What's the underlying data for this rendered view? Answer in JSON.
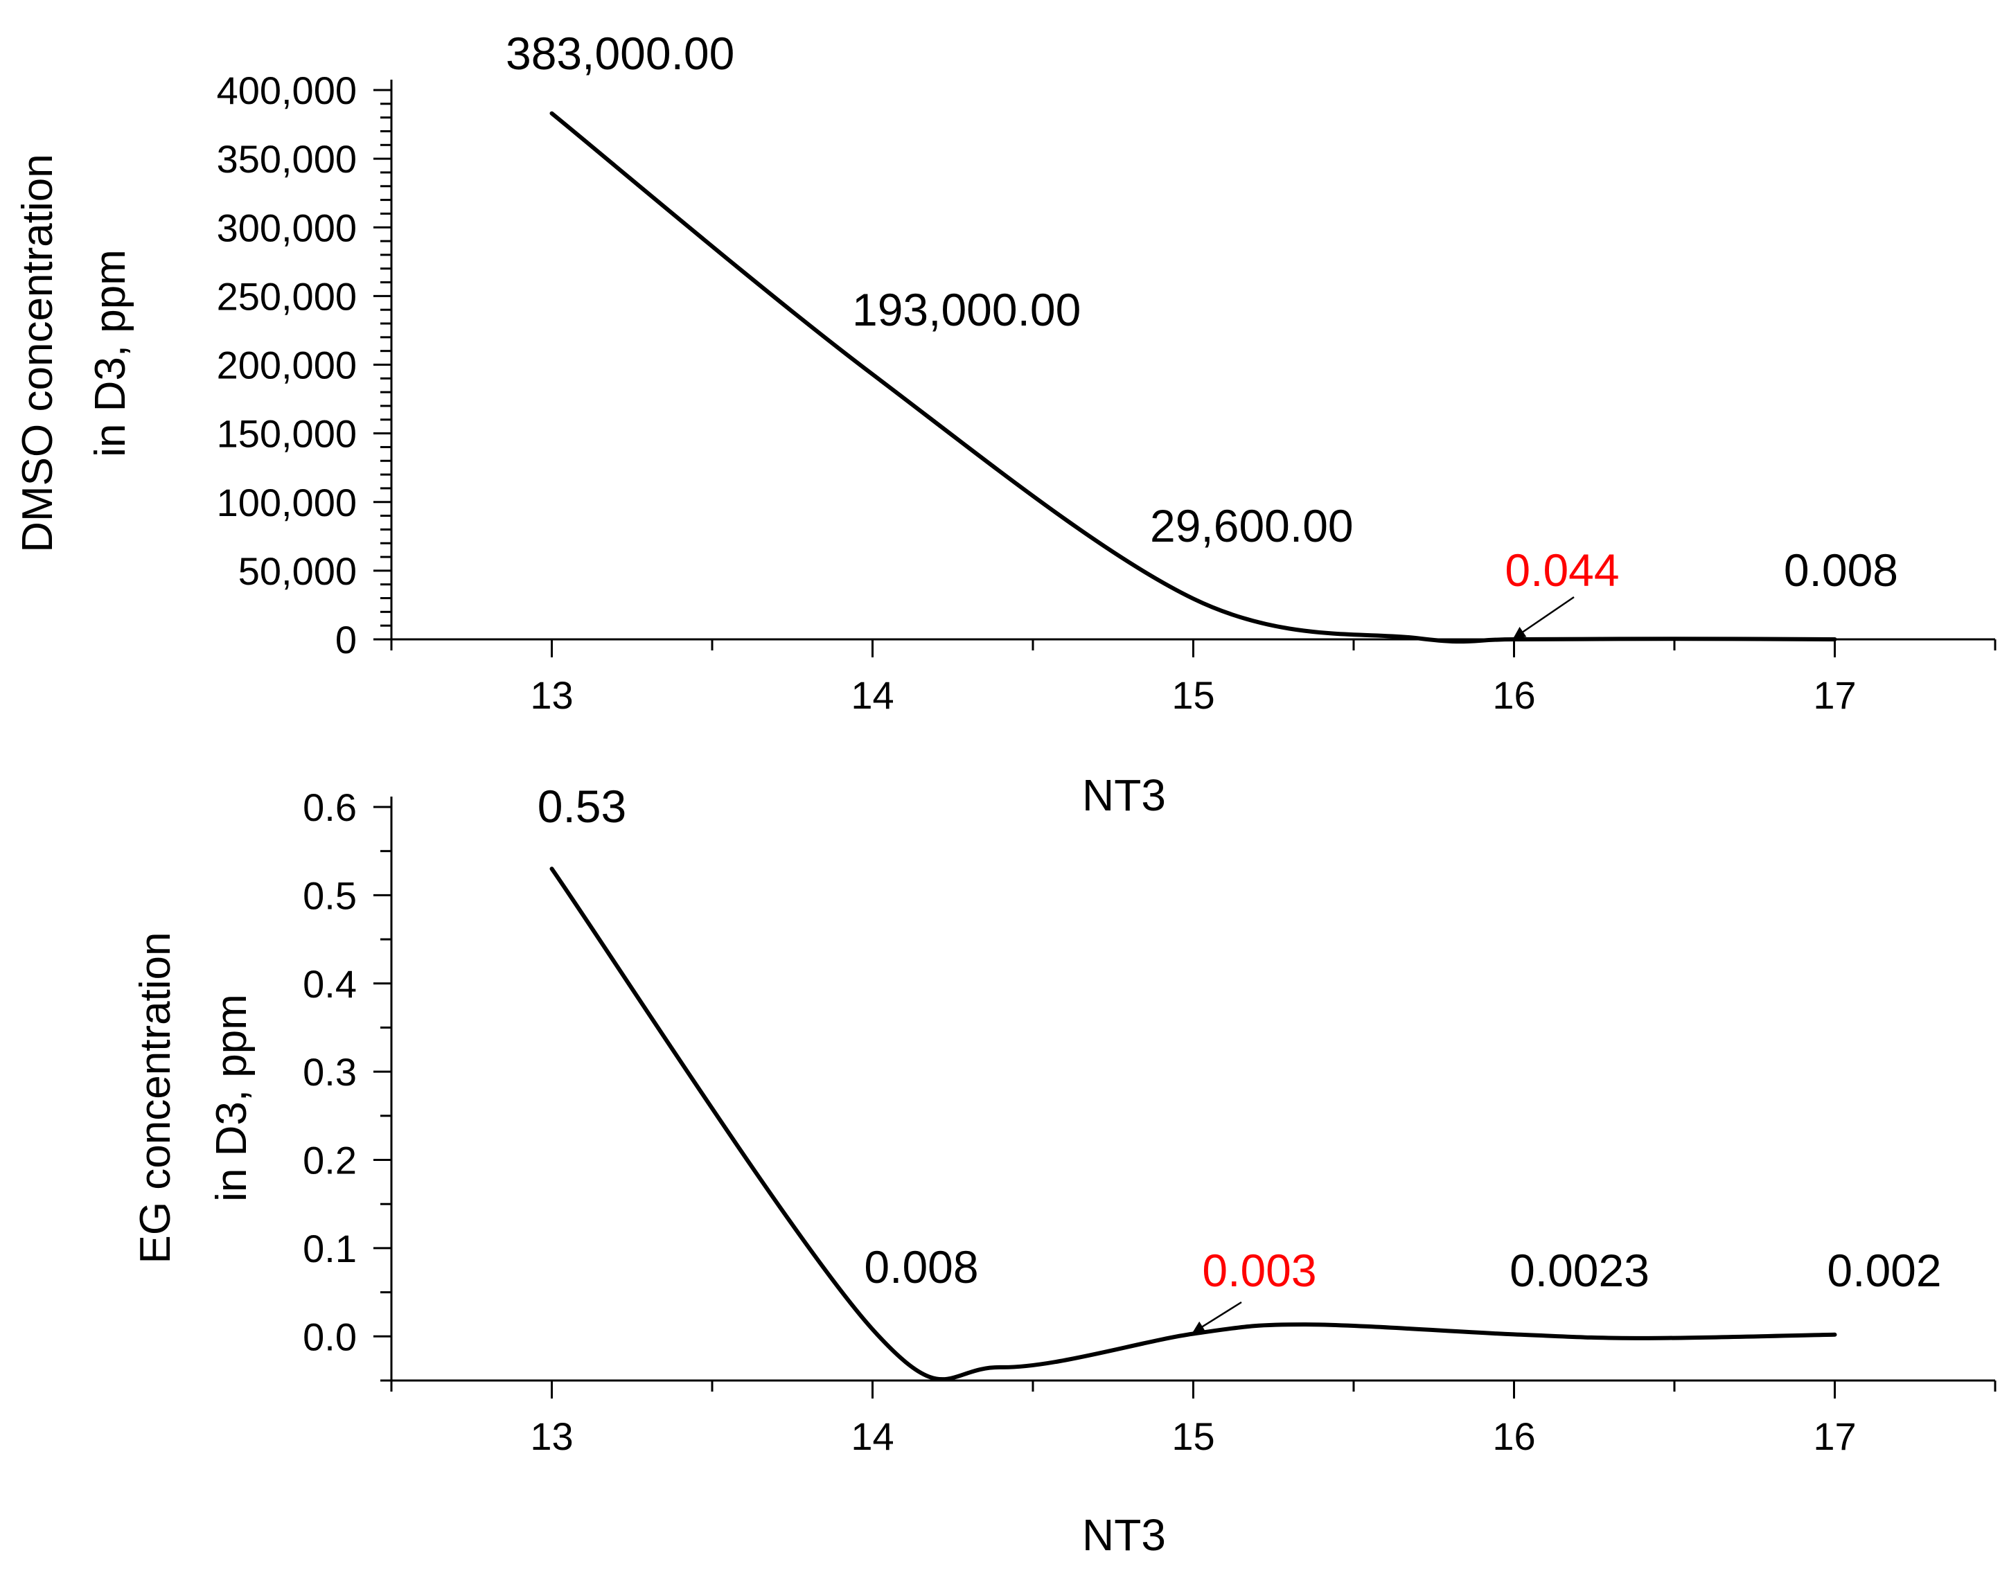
{
  "colors": {
    "axis": "#000000",
    "line": "#000000",
    "label": "#000000",
    "highlight": "#ff0000"
  },
  "chart_data": [
    {
      "type": "line",
      "xlabel": "NT3",
      "ylabel_lines": [
        "DMSO concentration",
        "in D3, ppm"
      ],
      "x_ticks": [
        "13",
        "14",
        "15",
        "16",
        "17"
      ],
      "y_ticks": [
        "0",
        "50,000",
        "100,000",
        "150,000",
        "200,000",
        "250,000",
        "300,000",
        "350,000",
        "400,000"
      ],
      "xlim": [
        12.5,
        17.5
      ],
      "ylim": [
        0,
        400000
      ],
      "series": [
        {
          "x": [
            13,
            14,
            15,
            16,
            17
          ],
          "values": [
            383000,
            193000,
            29600,
            0.044,
            0.008
          ]
        }
      ],
      "data_labels": [
        {
          "text": "383,000.00",
          "color": "#000000"
        },
        {
          "text": "193,000.00",
          "color": "#000000"
        },
        {
          "text": "29,600.00",
          "color": "#000000"
        },
        {
          "text": "0.044",
          "color": "#ff0000",
          "arrow": true
        },
        {
          "text": "0.008",
          "color": "#000000"
        }
      ],
      "grid": false
    },
    {
      "type": "line",
      "xlabel": "NT3",
      "ylabel_lines": [
        "EG concentration",
        "in D3, ppm"
      ],
      "x_ticks": [
        "13",
        "14",
        "15",
        "16",
        "17"
      ],
      "y_ticks": [
        "0.0",
        "0.1",
        "0.2",
        "0.3",
        "0.4",
        "0.5",
        "0.6"
      ],
      "xlim": [
        12.5,
        17.5
      ],
      "ylim": [
        -0.05,
        0.6
      ],
      "series": [
        {
          "x": [
            13,
            14,
            15,
            16,
            17
          ],
          "values": [
            0.53,
            0.008,
            0.003,
            0.0023,
            0.002
          ]
        }
      ],
      "data_labels": [
        {
          "text": "0.53",
          "color": "#000000"
        },
        {
          "text": "0.008",
          "color": "#000000"
        },
        {
          "text": "0.003",
          "color": "#ff0000",
          "arrow": true
        },
        {
          "text": "0.0023",
          "color": "#000000"
        },
        {
          "text": "0.002",
          "color": "#000000"
        }
      ],
      "grid": false
    }
  ]
}
